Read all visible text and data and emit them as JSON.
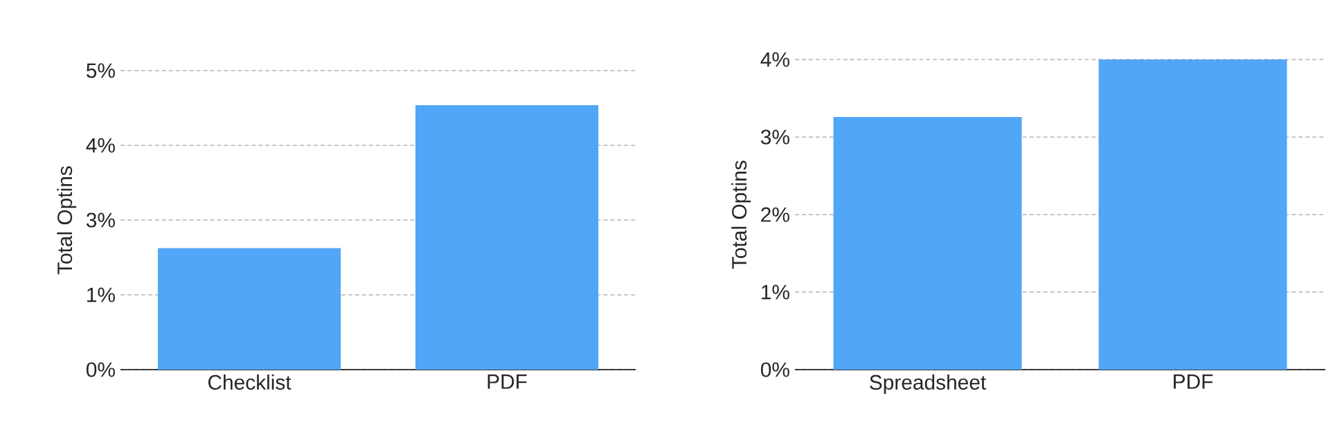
{
  "chart_data": [
    {
      "type": "bar",
      "ylabel": "Total Optins",
      "categories": [
        "Checklist",
        "PDF"
      ],
      "values": [
        2.03,
        4.42
      ],
      "color": "#51a6f8",
      "ylim": [
        0,
        5
      ],
      "yticks": [
        {
          "value": 0,
          "label": "0%"
        },
        {
          "value": 1.25,
          "label": "1%"
        },
        {
          "value": 2.5,
          "label": "3%"
        },
        {
          "value": 3.75,
          "label": "4%"
        },
        {
          "value": 5,
          "label": "5%"
        }
      ],
      "grid": "y"
    },
    {
      "type": "bar",
      "ylabel": "Total Optins",
      "categories": [
        "Spreadsheet",
        "PDF"
      ],
      "values": [
        3.26,
        4.0
      ],
      "color": "#51a6f8",
      "ylim": [
        0,
        4
      ],
      "yticks": [
        {
          "value": 0,
          "label": "0%"
        },
        {
          "value": 1,
          "label": "1%"
        },
        {
          "value": 2,
          "label": "2%"
        },
        {
          "value": 3,
          "label": "3%"
        },
        {
          "value": 4,
          "label": "4%"
        }
      ],
      "grid": "y"
    }
  ]
}
